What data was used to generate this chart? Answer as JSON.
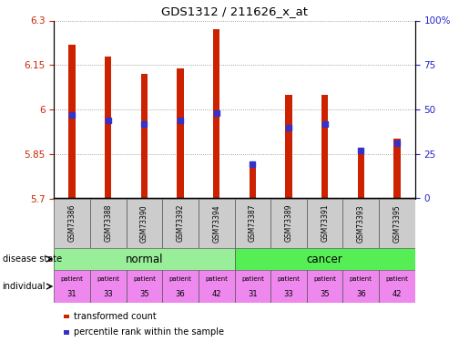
{
  "title": "GDS1312 / 211626_x_at",
  "samples": [
    "GSM73386",
    "GSM73388",
    "GSM73390",
    "GSM73392",
    "GSM73394",
    "GSM73387",
    "GSM73389",
    "GSM73391",
    "GSM73393",
    "GSM73395"
  ],
  "transformed_counts": [
    6.22,
    6.18,
    6.12,
    6.14,
    6.27,
    5.82,
    6.05,
    6.05,
    5.86,
    5.9
  ],
  "percentile_ranks": [
    47,
    44,
    42,
    44,
    48,
    19,
    40,
    42,
    27,
    31
  ],
  "ylim": [
    5.7,
    6.3
  ],
  "yticks": [
    5.7,
    5.85,
    6.0,
    6.15,
    6.3
  ],
  "ytick_labels": [
    "5.7",
    "5.85",
    "6",
    "6.15",
    "6.3"
  ],
  "y2ticks": [
    0,
    25,
    50,
    75,
    100
  ],
  "y2tick_labels": [
    "0",
    "25",
    "50",
    "75",
    "100%"
  ],
  "bar_color": "#cc2200",
  "percentile_color": "#3333cc",
  "normal_color": "#99ee99",
  "cancer_color": "#55ee55",
  "individual_color": "#ee88ee",
  "ybase": 5.7,
  "grid_color": "#888888",
  "tick_color_left": "#cc2200",
  "tick_color_right": "#2222cc",
  "bar_width": 0.18
}
